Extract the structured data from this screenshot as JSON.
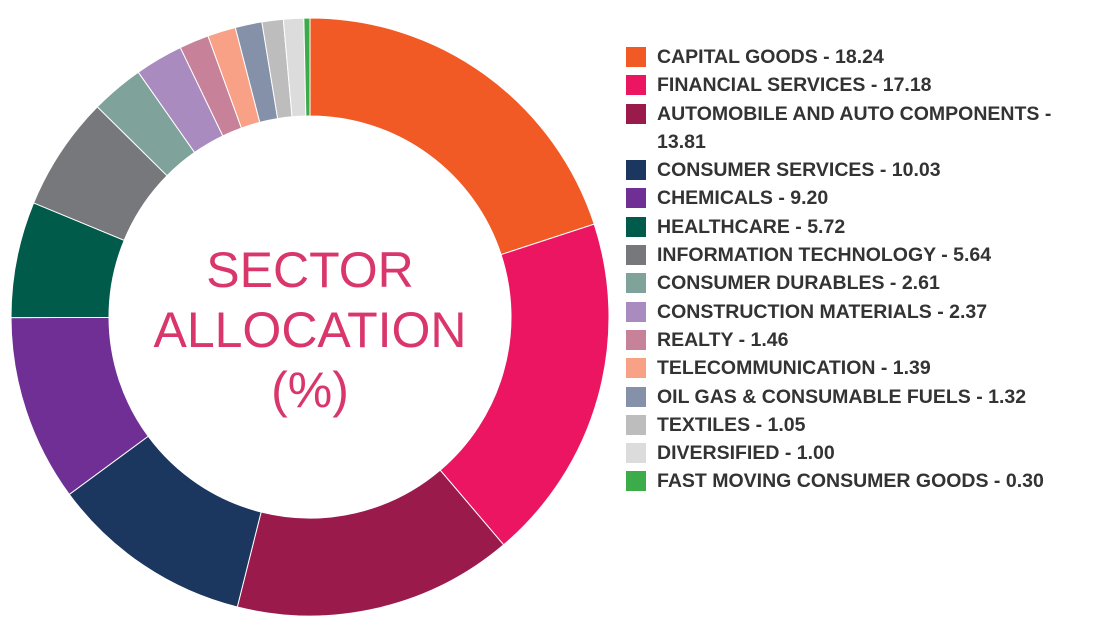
{
  "chart_data": {
    "type": "pie",
    "donut": true,
    "title": "SECTOR ALLOCATION (%)",
    "title_lines": [
      "SECTOR",
      "ALLOCATION",
      "(%)"
    ],
    "title_color": "#d9366b",
    "legend_position": "right",
    "start": "top",
    "direction": "clockwise",
    "slices": [
      {
        "label": "CAPITAL GOODS",
        "value": 18.24,
        "color": "#f15a24",
        "legend_text": "CAPITAL GOODS - 18.24"
      },
      {
        "label": "FINANCIAL SERVICES",
        "value": 17.18,
        "color": "#ec1561",
        "legend_text": "FINANCIAL SERVICES - 17.18"
      },
      {
        "label": "AUTOMOBILE AND AUTO COMPONENTS",
        "value": 13.81,
        "color": "#9a1a4c",
        "legend_text": "AUTOMOBILE AND AUTO COMPONENTS - 13.81"
      },
      {
        "label": "CONSUMER SERVICES",
        "value": 10.03,
        "color": "#1b365f",
        "legend_text": "CONSUMER SERVICES - 10.03"
      },
      {
        "label": "CHEMICALS",
        "value": 9.2,
        "color": "#6f2f94",
        "legend_text": "CHEMICALS - 9.20"
      },
      {
        "label": "HEALTHCARE",
        "value": 5.72,
        "color": "#005b4b",
        "legend_text": "HEALTHCARE - 5.72"
      },
      {
        "label": "INFORMATION TECHNOLOGY",
        "value": 5.64,
        "color": "#77787b",
        "legend_text": "INFORMATION TECHNOLOGY - 5.64"
      },
      {
        "label": "CONSUMER DURABLES",
        "value": 2.61,
        "color": "#7fa39a",
        "legend_text": "CONSUMER DURABLES - 2.61"
      },
      {
        "label": "CONSTRUCTION MATERIALS",
        "value": 2.37,
        "color": "#a98bbf",
        "legend_text": "CONSTRUCTION MATERIALS - 2.37"
      },
      {
        "label": "REALTY",
        "value": 1.46,
        "color": "#c7829a",
        "legend_text": "REALTY - 1.46"
      },
      {
        "label": "TELECOMMUNICATION",
        "value": 1.39,
        "color": "#f8a186",
        "legend_text": "TELECOMMUNICATION - 1.39"
      },
      {
        "label": "OIL GAS & CONSUMABLE FUELS",
        "value": 1.32,
        "color": "#8591a9",
        "legend_text": "OIL GAS & CONSUMABLE FUELS - 1.32"
      },
      {
        "label": "TEXTILES",
        "value": 1.05,
        "color": "#bdbdbd",
        "legend_text": "TEXTILES - 1.05"
      },
      {
        "label": "DIVERSIFIED",
        "value": 1.0,
        "color": "#dcdcdc",
        "legend_text": "DIVERSIFIED - 1.00"
      },
      {
        "label": "FAST MOVING CONSUMER GOODS",
        "value": 0.3,
        "color": "#3cab49",
        "legend_text": "FAST MOVING CONSUMER GOODS - 0.30"
      }
    ]
  }
}
